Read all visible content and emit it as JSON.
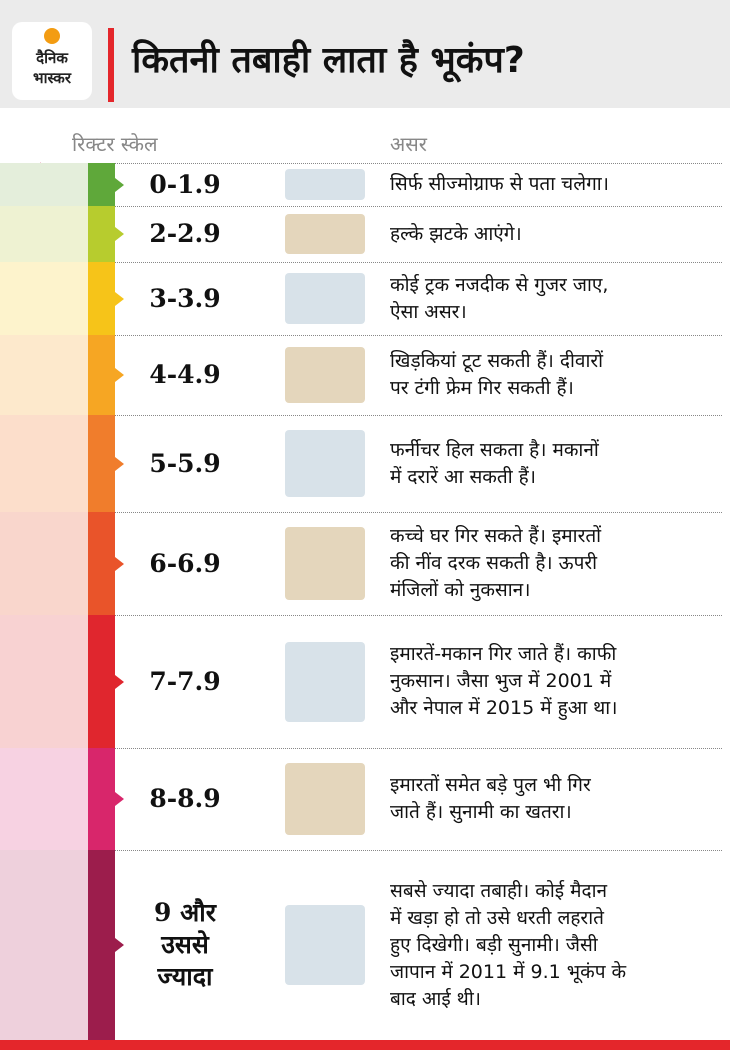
{
  "header": {
    "logo": [
      "दैनिक",
      "भास्कर"
    ],
    "title": "कितनी तबाही लाता है भूकंप?"
  },
  "columns": {
    "scale": "रिक्टर स्केल",
    "effect": "असर"
  },
  "rows": [
    {
      "scale": [
        "0-1.9"
      ],
      "effect": [
        "सिर्फ सीज्मोग्राफ से पता चलेगा।"
      ]
    },
    {
      "scale": [
        "2-2.9"
      ],
      "effect": [
        "हल्के झटके आएंगे।"
      ]
    },
    {
      "scale": [
        "3-3.9"
      ],
      "effect": [
        "कोई ट्रक नजदीक से गुजर जाए,",
        "ऐसा असर।"
      ]
    },
    {
      "scale": [
        "4-4.9"
      ],
      "effect": [
        "खिड़कियां टूट सकती हैं। दीवारों",
        "पर टंगी फ्रेम गिर सकती हैं।"
      ]
    },
    {
      "scale": [
        "5-5.9"
      ],
      "effect": [
        "फर्नीचर हिल सकता है। मकानों",
        "में दरारें आ सकती हैं।"
      ]
    },
    {
      "scale": [
        "6-6.9"
      ],
      "effect": [
        "कच्चे घर गिर सकते हैं। इमारतों",
        "की नींव दरक सकती है। ऊपरी",
        "मंजिलों को नुकसान।"
      ]
    },
    {
      "scale": [
        "7-7.9"
      ],
      "effect": [
        "इमारतें-मकान गिर जाते हैं। काफी",
        "नुकसान। जैसा भुज में 2001 में",
        "और नेपाल में 2015 में हुआ था।"
      ]
    },
    {
      "scale": [
        "8-8.9"
      ],
      "effect": [
        "इमारतों समेत बड़े पुल भी गिर",
        "जाते हैं। सुनामी का खतरा।"
      ]
    },
    {
      "scale": [
        "9 और",
        "उससे",
        "ज्यादा"
      ],
      "effect": [
        "सबसे ज्यादा तबाही। कोई मैदान",
        "में खड़ा हो तो उसे धरती लहराते",
        "हुए दिखेगी। बड़ी सुनामी। जैसी",
        "जापान में 2011 में 9.1 भूकंप के",
        "बाद आई थी।"
      ]
    }
  ]
}
